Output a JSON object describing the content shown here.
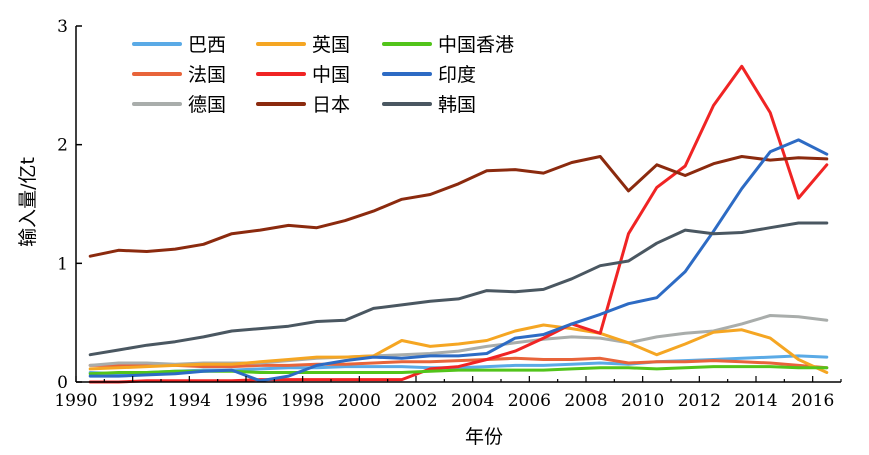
{
  "chart_data": {
    "type": "line",
    "title": "",
    "xlabel": "年份",
    "ylabel": "输入量/亿t",
    "xlim": [
      1990,
      2017
    ],
    "ylim": [
      0,
      3
    ],
    "xticks": [
      1990,
      1992,
      1994,
      1996,
      1998,
      2000,
      2002,
      2004,
      2006,
      2008,
      2010,
      2012,
      2014,
      2016
    ],
    "yticks": [
      0,
      1,
      2,
      3
    ],
    "grid": false,
    "legend_position": "top-left",
    "x": [
      1990.5,
      1991.5,
      1992.5,
      1993.5,
      1994.5,
      1995.5,
      1996.5,
      1997.5,
      1998.5,
      1999.5,
      2000.5,
      2001.5,
      2002.5,
      2003.5,
      2004.5,
      2005.5,
      2006.5,
      2007.5,
      2008.5,
      2009.5,
      2010.5,
      2011.5,
      2012.5,
      2013.5,
      2014.5,
      2015.5,
      2016.5
    ],
    "series": [
      {
        "name": "巴西",
        "color": "#5aaae6",
        "values": [
          0.08,
          0.07,
          0.08,
          0.09,
          0.1,
          0.1,
          0.11,
          0.12,
          0.12,
          0.13,
          0.13,
          0.13,
          0.12,
          0.12,
          0.13,
          0.14,
          0.14,
          0.15,
          0.16,
          0.15,
          0.17,
          0.18,
          0.19,
          0.2,
          0.21,
          0.22,
          0.21
        ]
      },
      {
        "name": "法国",
        "color": "#e8643a",
        "values": [
          0.14,
          0.14,
          0.14,
          0.14,
          0.13,
          0.13,
          0.14,
          0.14,
          0.15,
          0.15,
          0.16,
          0.17,
          0.17,
          0.18,
          0.19,
          0.2,
          0.19,
          0.19,
          0.2,
          0.16,
          0.17,
          0.17,
          0.18,
          0.17,
          0.16,
          0.14,
          0.12
        ]
      },
      {
        "name": "德国",
        "color": "#a9adab",
        "values": [
          0.14,
          0.16,
          0.16,
          0.15,
          0.16,
          0.16,
          0.16,
          0.18,
          0.2,
          0.21,
          0.22,
          0.23,
          0.24,
          0.26,
          0.3,
          0.33,
          0.36,
          0.38,
          0.37,
          0.33,
          0.38,
          0.41,
          0.43,
          0.49,
          0.56,
          0.55,
          0.52
        ]
      },
      {
        "name": "英国",
        "color": "#f5a623",
        "values": [
          0.11,
          0.12,
          0.13,
          0.14,
          0.15,
          0.15,
          0.17,
          0.19,
          0.21,
          0.21,
          0.22,
          0.35,
          0.3,
          0.32,
          0.35,
          0.43,
          0.48,
          0.45,
          0.41,
          0.33,
          0.23,
          0.32,
          0.42,
          0.44,
          0.37,
          0.19,
          0.08
        ]
      },
      {
        "name": "中国",
        "color": "#f02424",
        "values": [
          0.0,
          0.0,
          0.01,
          0.01,
          0.01,
          0.01,
          0.02,
          0.02,
          0.02,
          0.02,
          0.02,
          0.02,
          0.11,
          0.13,
          0.19,
          0.26,
          0.37,
          0.49,
          0.41,
          1.25,
          1.64,
          1.82,
          2.33,
          2.66,
          2.27,
          1.55,
          1.83
        ]
      },
      {
        "name": "日本",
        "color": "#8b2a0e",
        "values": [
          1.06,
          1.11,
          1.1,
          1.12,
          1.16,
          1.25,
          1.28,
          1.32,
          1.3,
          1.36,
          1.44,
          1.54,
          1.58,
          1.67,
          1.78,
          1.79,
          1.76,
          1.85,
          1.9,
          1.61,
          1.83,
          1.74,
          1.84,
          1.9,
          1.87,
          1.89,
          1.88
        ]
      },
      {
        "name": "中国香港",
        "color": "#52c41a",
        "values": [
          0.07,
          0.08,
          0.08,
          0.09,
          0.09,
          0.09,
          0.08,
          0.08,
          0.08,
          0.08,
          0.08,
          0.08,
          0.09,
          0.1,
          0.1,
          0.1,
          0.1,
          0.11,
          0.12,
          0.12,
          0.11,
          0.12,
          0.13,
          0.13,
          0.13,
          0.12,
          0.12
        ]
      },
      {
        "name": "印度",
        "color": "#2d6bc4",
        "values": [
          0.05,
          0.05,
          0.06,
          0.07,
          0.09,
          0.1,
          0.01,
          0.05,
          0.14,
          0.18,
          0.21,
          0.2,
          0.22,
          0.22,
          0.24,
          0.37,
          0.4,
          0.49,
          0.57,
          0.66,
          0.71,
          0.93,
          1.27,
          1.63,
          1.94,
          2.04,
          1.92
        ]
      },
      {
        "name": "韩国",
        "color": "#4a5761",
        "values": [
          0.23,
          0.27,
          0.31,
          0.34,
          0.38,
          0.43,
          0.45,
          0.47,
          0.51,
          0.52,
          0.62,
          0.65,
          0.68,
          0.7,
          0.77,
          0.76,
          0.78,
          0.87,
          0.98,
          1.02,
          1.17,
          1.28,
          1.25,
          1.26,
          1.3,
          1.34,
          1.34
        ]
      }
    ]
  }
}
